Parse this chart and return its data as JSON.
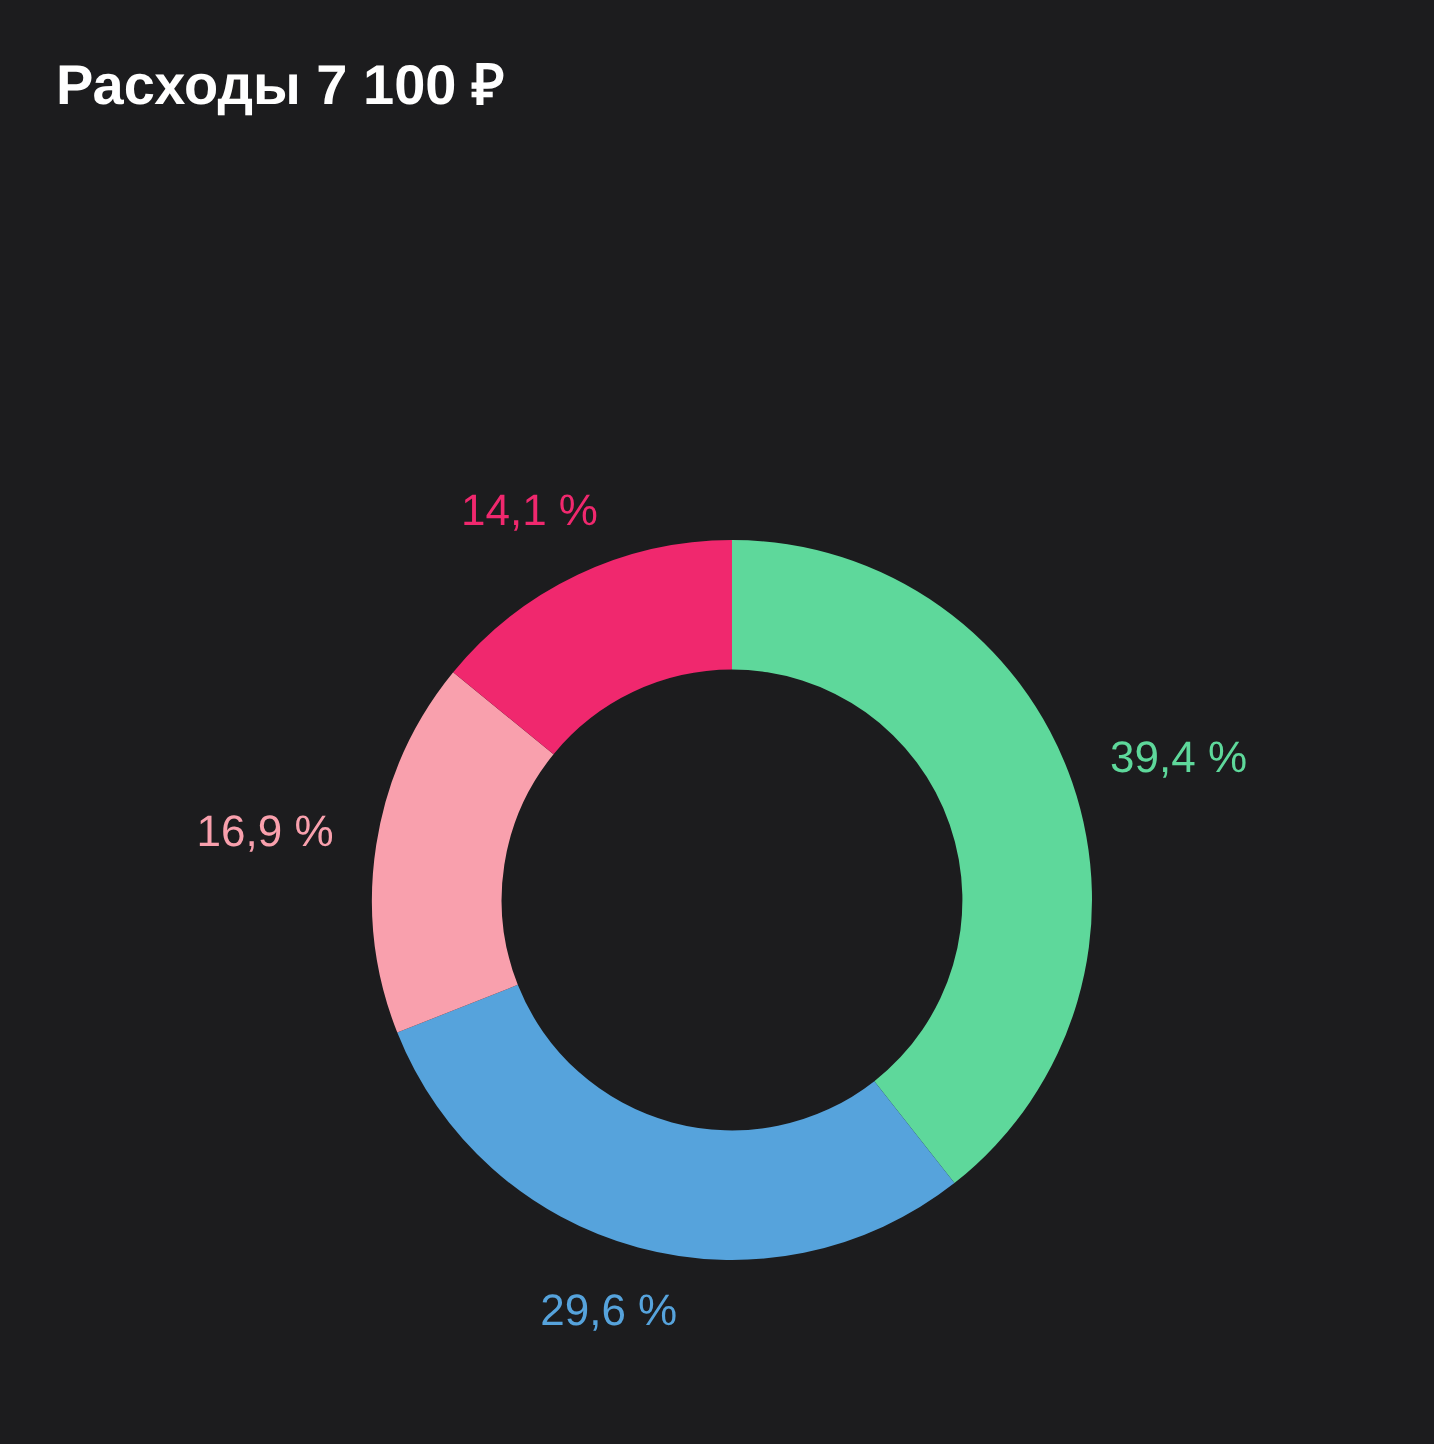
{
  "chart_data": {
    "type": "donut",
    "title": "Расходы 7 100 ₽",
    "categories": [
      null,
      null,
      null,
      null
    ],
    "values": [
      39.4,
      29.6,
      16.9,
      14.1
    ],
    "colors": [
      "#5ed89b",
      "#56a3dc",
      "#f9a0ad",
      "#f0286e"
    ],
    "value_labels": [
      "39,4 %",
      "29,6 %",
      "16,9 %",
      "14,1 %"
    ],
    "legend": false
  }
}
